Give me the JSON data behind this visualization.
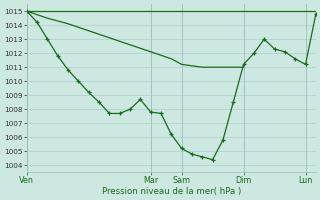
{
  "background_color": "#cce8e0",
  "grid_color": "#aacccc",
  "line_color": "#1a6b1a",
  "xlabel": "Pression niveau de la mer( hPa )",
  "ylim": [
    1003.5,
    1015.5
  ],
  "ytick_min": 1004,
  "ytick_max": 1015,
  "day_labels": [
    "Ven",
    "Mar",
    "Sam",
    "Dim",
    "Lun"
  ],
  "day_positions": [
    0,
    12,
    15,
    21,
    27
  ],
  "xlim": [
    0,
    28
  ],
  "line_flat": {
    "x": [
      0,
      15,
      28
    ],
    "y": [
      1015.0,
      1015.0,
      1015.0
    ]
  },
  "line_diagonal": {
    "x": [
      0,
      2,
      4,
      6,
      8,
      10,
      12,
      14,
      15,
      16,
      17,
      18,
      19,
      21
    ],
    "y": [
      1015.0,
      1014.5,
      1014.0,
      1013.5,
      1013.0,
      1012.5,
      1012.0,
      1011.5,
      1011.2,
      1011.0,
      1011.0,
      1011.0,
      1011.0,
      1011.0
    ]
  },
  "line_main_x": [
    0,
    1,
    2,
    3,
    4,
    5,
    6,
    7,
    8,
    9,
    10,
    11,
    12,
    13,
    14,
    15,
    16,
    17,
    18,
    19,
    20,
    21,
    22,
    23,
    24,
    25,
    26,
    27,
    28
  ],
  "line_main_y": [
    1015.0,
    1014.2,
    1013.0,
    1011.8,
    1010.8,
    1010.0,
    1009.2,
    1008.5,
    1007.7,
    1007.7,
    1008.0,
    1008.7,
    1007.8,
    1007.7,
    1006.2,
    1005.2,
    1004.8,
    1004.6,
    1004.4,
    1005.8,
    1008.5,
    1011.2,
    1012.0,
    1013.0,
    1012.3,
    1012.1,
    1011.6,
    1011.2,
    1014.8
  ],
  "line_upper_right": {
    "x": [
      21,
      22,
      23,
      24,
      25,
      26,
      27,
      28
    ],
    "y": [
      1011.2,
      1012.0,
      1013.0,
      1012.3,
      1012.1,
      1011.6,
      1011.2,
      1014.8
    ]
  }
}
